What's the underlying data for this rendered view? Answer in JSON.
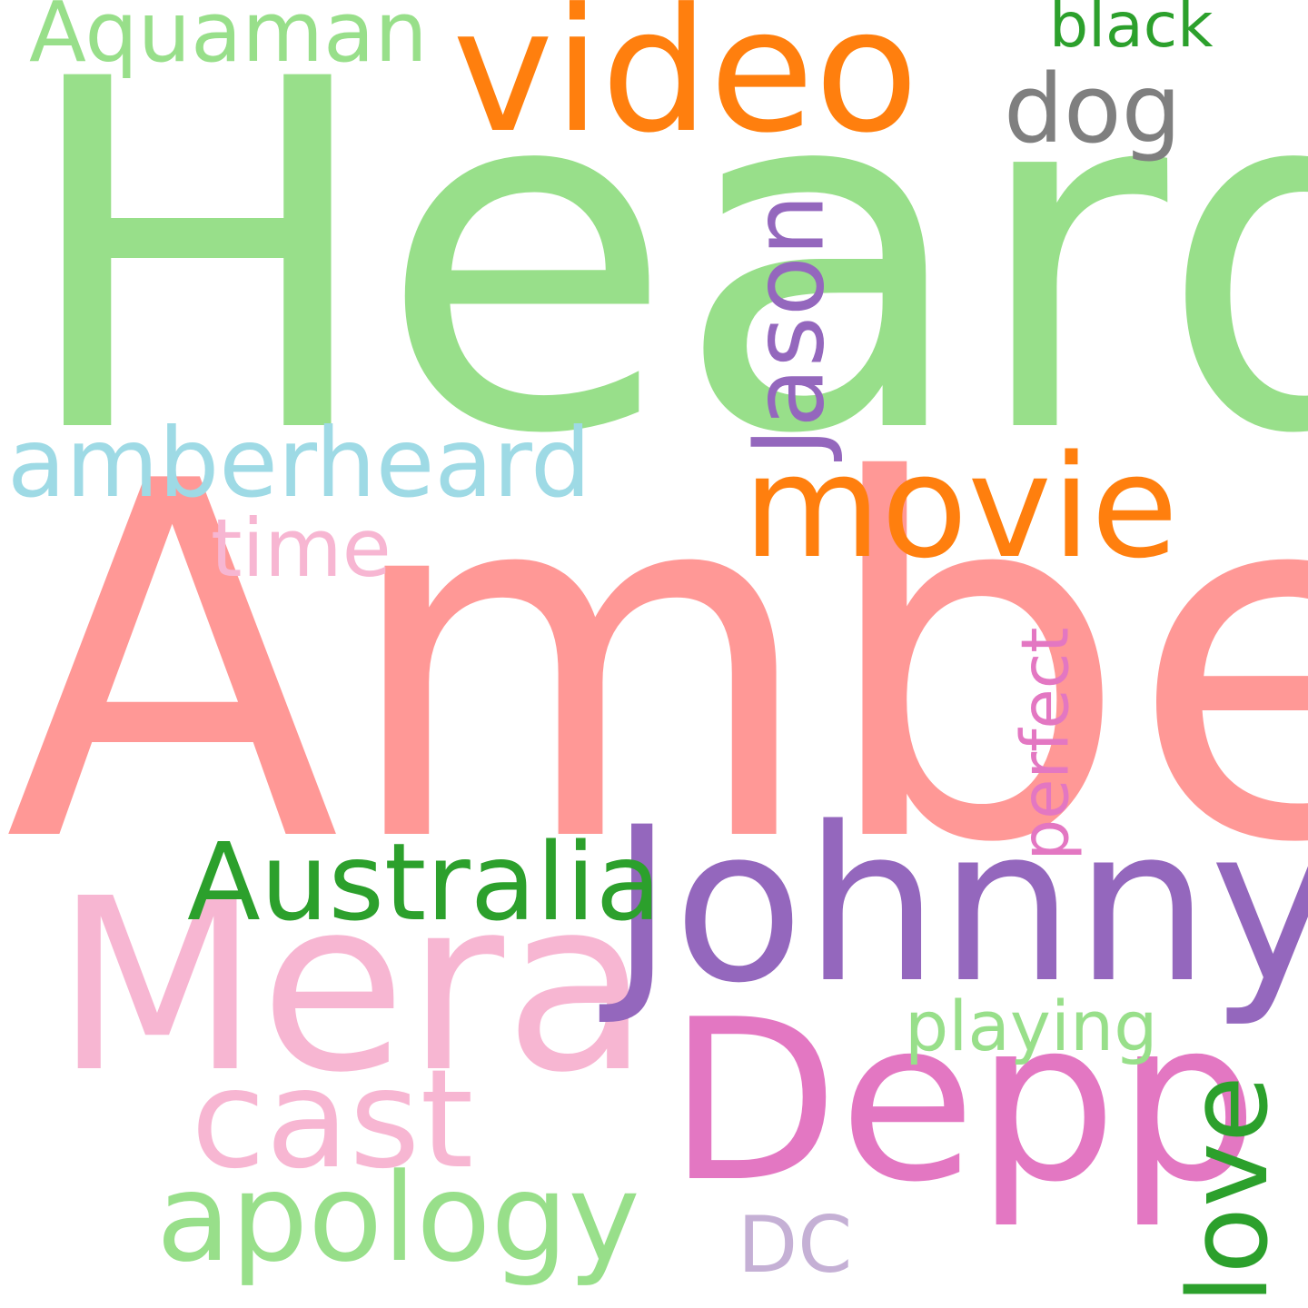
{
  "words": {
    "heard": {
      "text": "Heard",
      "color": "#98df8a"
    },
    "amber": {
      "text": "Amber",
      "color": "#ff9896"
    },
    "mera": {
      "text": "Mera",
      "color": "#f7b6d2"
    },
    "johnny": {
      "text": "Johnny",
      "color": "#9467bd"
    },
    "depp": {
      "text": "Depp",
      "color": "#e377c2"
    },
    "video": {
      "text": "video",
      "color": "#ff7f0e"
    },
    "movie": {
      "text": "movie",
      "color": "#ff7f0e"
    },
    "australia": {
      "text": "Australia",
      "color": "#2ca02c"
    },
    "cast": {
      "text": "cast",
      "color": "#f7b6d2"
    },
    "apology": {
      "text": "apology",
      "color": "#98df8a"
    },
    "amberheard": {
      "text": "amberheard",
      "color": "#9edae5"
    },
    "aquaman": {
      "text": "Aquaman",
      "color": "#98df8a"
    },
    "dog": {
      "text": "dog",
      "color": "#7f7f7f"
    },
    "black": {
      "text": "black",
      "color": "#2ca02c"
    },
    "time": {
      "text": "time",
      "color": "#f7b6d2"
    },
    "playing": {
      "text": "playing",
      "color": "#98df8a"
    },
    "dc": {
      "text": "DC",
      "color": "#c5b0d5"
    },
    "jason": {
      "text": "Jason",
      "color": "#9467bd"
    },
    "perfect": {
      "text": "perfect",
      "color": "#e377c2"
    },
    "love": {
      "text": "love",
      "color": "#2ca02c"
    }
  }
}
